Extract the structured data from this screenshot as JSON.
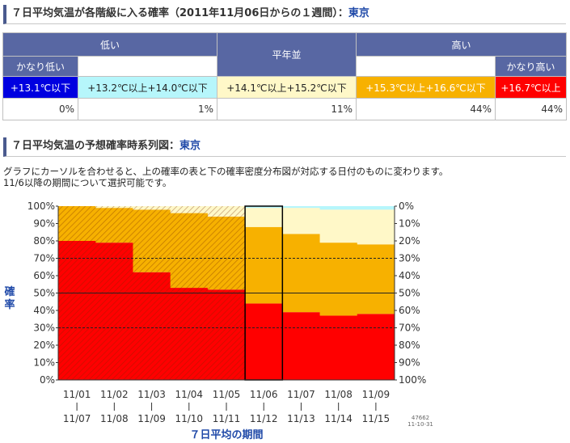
{
  "section1": {
    "title": "７日平均気温が各階級に入る確率（2011年11月06日からの１週間）：",
    "location": "東京"
  },
  "prob_table": {
    "header_low": "低い",
    "header_normal": "平年並",
    "header_high": "高い",
    "header_very_low": "かなり低い",
    "header_very_high": "かなり高い",
    "ranges": [
      "+13.1℃以下",
      "+13.2℃以上+14.0℃以下",
      "+14.1℃以上+15.2℃以下",
      "+15.3℃以上+16.6℃以下",
      "+16.7℃以上"
    ],
    "probs": [
      "0%",
      "1%",
      "11%",
      "44%",
      "44%"
    ],
    "colors": [
      "#0000e0",
      "#b6f6fb",
      "#fff8c8",
      "#f7b100",
      "#ff0000"
    ]
  },
  "section2": {
    "title": "７日平均気温の予想確率時系列図：",
    "location": "東京"
  },
  "description": {
    "line1": "グラフにカーソルを合わせると、上の確率の表と下の確率密度分布図が対応する日付のものに変わります。",
    "line2": "11/6以降の期間について選択可能です。"
  },
  "chart_data": {
    "type": "area",
    "ylabel": "確率",
    "xlabel": "７日平均の期間",
    "y_left_ticks": [
      "100%",
      "90%",
      "80%",
      "70%",
      "60%",
      "50%",
      "40%",
      "30%",
      "20%",
      "10%",
      "0%"
    ],
    "y_right_ticks": [
      "0%",
      "10%",
      "20%",
      "30%",
      "40%",
      "50%",
      "60%",
      "70%",
      "80%",
      "90%",
      "100%"
    ],
    "periods": [
      {
        "start": "11/01",
        "end": "11/07"
      },
      {
        "start": "11/02",
        "end": "11/08"
      },
      {
        "start": "11/03",
        "end": "11/09"
      },
      {
        "start": "11/04",
        "end": "11/10"
      },
      {
        "start": "11/05",
        "end": "11/11"
      },
      {
        "start": "11/06",
        "end": "11/12"
      },
      {
        "start": "11/07",
        "end": "11/13"
      },
      {
        "start": "11/08",
        "end": "11/14"
      },
      {
        "start": "11/09",
        "end": "11/15"
      }
    ],
    "series": [
      {
        "class": "かなり高い",
        "color": "#ff0000",
        "values": [
          80,
          79,
          62,
          53,
          52,
          44,
          39,
          37,
          38
        ]
      },
      {
        "class": "高い",
        "color": "#f7b100",
        "values": [
          20,
          20,
          36,
          43,
          42,
          44,
          45,
          42,
          40
        ]
      },
      {
        "class": "平年並",
        "color": "#fff8c8",
        "values": [
          0,
          1,
          2,
          4,
          6,
          11,
          15,
          19,
          20
        ]
      },
      {
        "class": "低い",
        "color": "#b6f6fb",
        "values": [
          0,
          0,
          0,
          0,
          0,
          1,
          1,
          2,
          2
        ]
      },
      {
        "class": "かなり低い",
        "color": "#0000e0",
        "values": [
          0,
          0,
          0,
          0,
          0,
          0,
          0,
          0,
          0
        ]
      }
    ],
    "observed_periods_count": 5,
    "highlighted_period": "11/06",
    "reference_lines": [
      30,
      50,
      70
    ],
    "stamp": [
      "47662",
      "11-10-31"
    ]
  }
}
